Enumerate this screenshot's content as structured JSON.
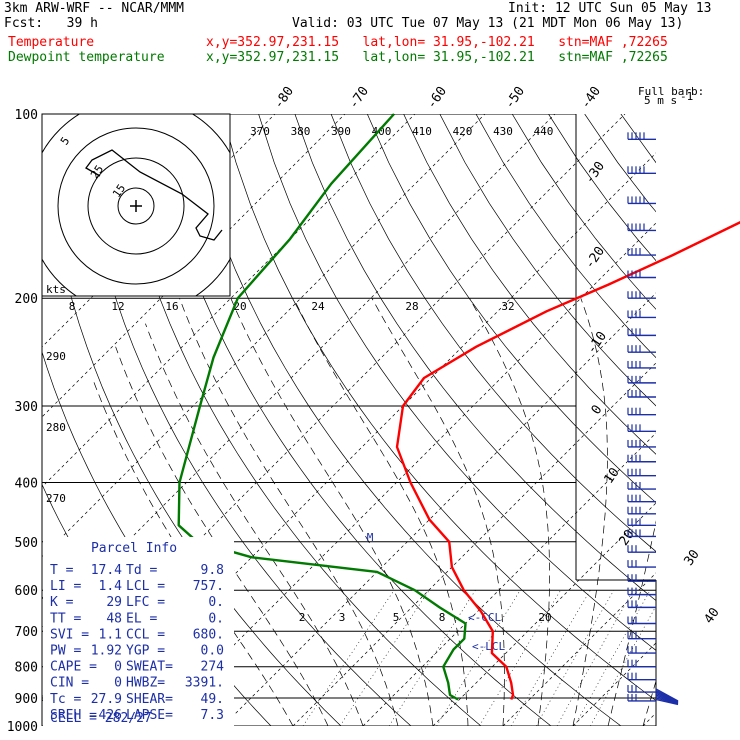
{
  "header": {
    "model": "3km ARW-WRF -- NCAR/MMM",
    "init": "Init: 12 UTC Sun 05 May 13",
    "fcst": "Fcst:   39 h",
    "valid": "Valid: 03 UTC Tue 07 May 13 (21 MDT Mon 06 May 13)",
    "temp_label": "Temperature",
    "temp_info": "x,y=352.97,231.15   lat,lon= 31.95,-102.21   stn=MAF ,72265",
    "dew_label": "Dewpoint temperature",
    "dew_info": "x,y=352.97,231.15   lat,lon= 31.95,-102.21   stn=MAF ,72265",
    "temp_color": "#ff0000",
    "dew_color": "#007a00"
  },
  "barb_legend": {
    "title": "Full barb:",
    "value": "5 m s",
    "sup": "-1"
  },
  "parcel": {
    "title": "Parcel Info",
    "rows": [
      [
        "T   =",
        "17.4",
        "Td  =",
        "9.8"
      ],
      [
        "LI  =",
        "1.4",
        "LCL =",
        "757."
      ],
      [
        "K   =",
        "29",
        "LFC =",
        "0."
      ],
      [
        "TT  =",
        "48",
        "EL  =",
        "0."
      ],
      [
        "SVI =",
        "1.1",
        "CCL =",
        "680."
      ],
      [
        "PW  =",
        "1.92",
        "YGP =",
        "0.0"
      ],
      [
        "CAPE =",
        "0",
        "SWEAT=",
        "274"
      ],
      [
        "CIN  =",
        "0",
        "HWBZ=",
        "3391."
      ],
      [
        "Tc   =",
        "27.9",
        "SHEAR=",
        "49."
      ],
      [
        "SREH =",
        "426",
        "LAPSE=",
        "7.3"
      ]
    ],
    "cell": "CELL = 282/27"
  },
  "hodograph": {
    "rings_label": [
      "5",
      "25",
      "15"
    ],
    "units": "kts"
  },
  "chart_data": {
    "type": "line",
    "pressure_levels": [
      100,
      200,
      300,
      400,
      500,
      600,
      700,
      800,
      900,
      1000
    ],
    "pressure_level_labels": [
      "100",
      "200",
      "300",
      "400",
      "500",
      "600",
      "700",
      "800",
      "900",
      "1000"
    ],
    "isotherm_labels": [
      "-80",
      "-70",
      "-60",
      "-50",
      "-40",
      "-30",
      "-20",
      "-10",
      "0",
      "10",
      "20",
      "30",
      "40"
    ],
    "theta_labels": [
      "370",
      "380",
      "390",
      "400",
      "410",
      "420",
      "430",
      "440"
    ],
    "theta_left_labels": [
      "290",
      "280",
      "270"
    ],
    "mixing_ratio_labels": [
      "8",
      "12",
      "16",
      "20",
      "24",
      "28",
      "32"
    ],
    "mixing_ratio_low_labels": [
      "2",
      "3",
      "5",
      "8",
      "20"
    ],
    "markers": {
      "lcl": "LCL",
      "ccl": "<-CCL",
      "m": "M"
    },
    "series": [
      {
        "name": "Temperature",
        "color": "#ff0000",
        "points_T_P": [
          [
            -7,
            100
          ],
          [
            -10,
            130
          ],
          [
            -18,
            150
          ],
          [
            -23,
            170
          ],
          [
            -28,
            190
          ],
          [
            -33,
            210
          ],
          [
            -38,
            240
          ],
          [
            -41,
            270
          ],
          [
            -40,
            300
          ],
          [
            -35,
            350
          ],
          [
            -28,
            400
          ],
          [
            -20,
            460
          ],
          [
            -14,
            500
          ],
          [
            -10,
            550
          ],
          [
            -5,
            600
          ],
          [
            0.5,
            650
          ],
          [
            5,
            700
          ],
          [
            8,
            760
          ],
          [
            12,
            800
          ],
          [
            15,
            850
          ],
          [
            17,
            890
          ],
          [
            17.4,
            905
          ]
        ]
      },
      {
        "name": "Dewpoint temperature",
        "color": "#007a00",
        "points_T_P": [
          [
            -83,
            100
          ],
          [
            -82,
            130
          ],
          [
            -80,
            160
          ],
          [
            -79,
            200
          ],
          [
            -74,
            250
          ],
          [
            -69,
            300
          ],
          [
            -61,
            400
          ],
          [
            -55,
            470
          ],
          [
            -50,
            500
          ],
          [
            -40,
            530
          ],
          [
            -20,
            560
          ],
          [
            -12,
            600
          ],
          [
            -6,
            640
          ],
          [
            0,
            680
          ],
          [
            2,
            720
          ],
          [
            2,
            750
          ],
          [
            3,
            800
          ],
          [
            6,
            850
          ],
          [
            8,
            890
          ],
          [
            9.8,
            905
          ]
        ]
      }
    ]
  },
  "wind_barbs": {
    "column_pressures": [
      110,
      125,
      140,
      155,
      170,
      185,
      200,
      215,
      230,
      245,
      260,
      275,
      290,
      310,
      330,
      350,
      370,
      390,
      410,
      430,
      450,
      470,
      490,
      520,
      550,
      580,
      610,
      640,
      680,
      720,
      760,
      800,
      840,
      880,
      910
    ]
  }
}
